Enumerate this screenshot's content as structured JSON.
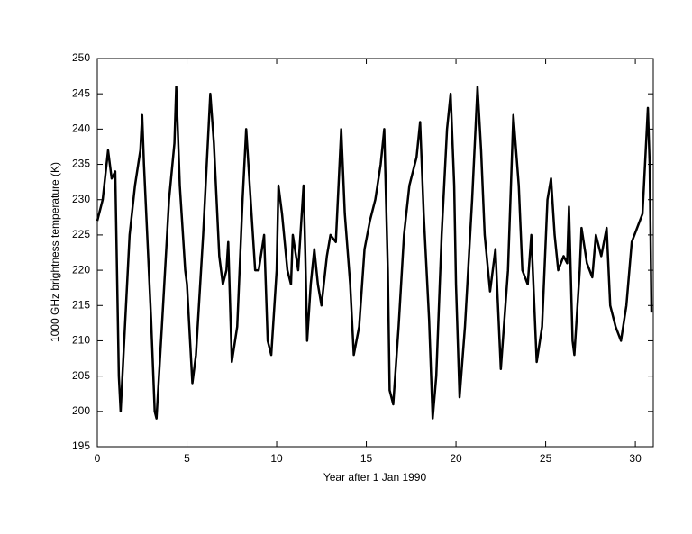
{
  "chart_data": {
    "type": "line",
    "xlabel": "Year after 1 Jan 1990",
    "ylabel": "1000 GHz brightness temperature (K)",
    "color": "#000000",
    "xlim": [
      0,
      31
    ],
    "xticks": [
      0,
      5,
      10,
      15,
      20,
      25,
      30
    ],
    "ylim": [
      195,
      250
    ],
    "yticks": [
      195,
      200,
      205,
      210,
      215,
      220,
      225,
      230,
      235,
      240,
      245,
      250
    ],
    "x": [
      0,
      0.3,
      0.6,
      0.8,
      1.0,
      1.2,
      1.3,
      1.5,
      1.8,
      2.1,
      2.4,
      2.5,
      2.6,
      2.8,
      3.0,
      3.2,
      3.3,
      3.6,
      4.0,
      4.3,
      4.4,
      4.6,
      4.9,
      5.0,
      5.3,
      5.5,
      5.9,
      6.1,
      6.3,
      6.5,
      6.8,
      7.0,
      7.2,
      7.3,
      7.5,
      7.8,
      8.1,
      8.3,
      8.5,
      8.8,
      9.0,
      9.3,
      9.5,
      9.7,
      10.0,
      10.1,
      10.3,
      10.6,
      10.8,
      10.9,
      11.2,
      11.5,
      11.6,
      11.7,
      11.9,
      12.1,
      12.3,
      12.5,
      12.8,
      13.0,
      13.3,
      13.6,
      13.8,
      14.1,
      14.3,
      14.6,
      14.9,
      15.2,
      15.5,
      15.8,
      16.0,
      16.2,
      16.3,
      16.5,
      16.8,
      17.1,
      17.4,
      17.8,
      18.0,
      18.2,
      18.5,
      18.7,
      18.9,
      19.2,
      19.5,
      19.7,
      19.9,
      20.0,
      20.2,
      20.5,
      20.9,
      21.2,
      21.4,
      21.6,
      21.9,
      22.2,
      22.5,
      22.9,
      23.2,
      23.5,
      23.7,
      24.0,
      24.2,
      24.5,
      24.8,
      25.1,
      25.3,
      25.5,
      25.7,
      26.0,
      26.2,
      26.3,
      26.5,
      26.6,
      26.9,
      27.0,
      27.3,
      27.6,
      27.8,
      28.1,
      28.4,
      28.6,
      28.9,
      29.2,
      29.5,
      29.8,
      30.1,
      30.4,
      30.7,
      30.8,
      30.9
    ],
    "values": [
      227,
      230,
      237,
      233,
      234,
      205,
      200,
      210,
      225,
      232,
      237,
      242,
      235,
      224,
      213,
      200,
      199,
      212,
      230,
      238,
      246,
      232,
      220,
      218,
      204,
      208,
      225,
      235,
      245,
      238,
      222,
      218,
      220,
      224,
      207,
      212,
      230,
      240,
      232,
      220,
      220,
      225,
      210,
      208,
      220,
      232,
      228,
      220,
      218,
      225,
      220,
      232,
      222,
      210,
      218,
      223,
      218,
      215,
      222,
      225,
      224,
      240,
      228,
      218,
      208,
      212,
      223,
      227,
      230,
      235,
      240,
      220,
      203,
      201,
      212,
      225,
      232,
      236,
      241,
      228,
      213,
      199,
      205,
      225,
      240,
      245,
      232,
      218,
      202,
      212,
      230,
      246,
      237,
      225,
      217,
      223,
      206,
      220,
      242,
      232,
      220,
      218,
      225,
      207,
      212,
      230,
      233,
      225,
      220,
      222,
      221,
      229,
      210,
      208,
      220,
      226,
      221,
      219,
      225,
      222,
      226,
      215,
      212,
      210,
      215,
      224,
      226,
      228,
      243,
      235,
      214
    ]
  }
}
